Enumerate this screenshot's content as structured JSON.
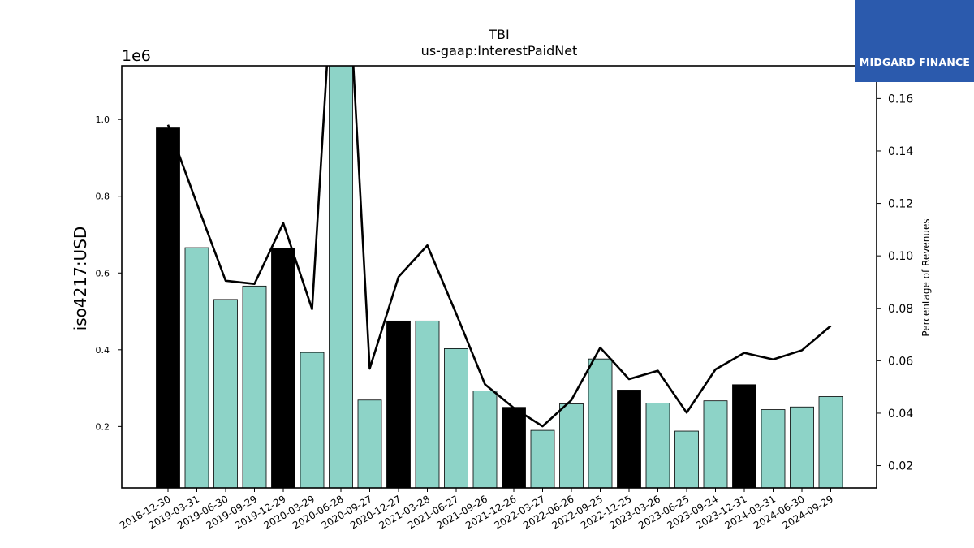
{
  "chart_data": {
    "type": "bar",
    "title": "TBI",
    "subtitle": "us-gaap:InterestPaidNet",
    "ylabel": "iso4217:USD",
    "y_offset_label": "1e6",
    "y2label": "Percentage of Revenues",
    "ylim": [
      40000,
      1140000
    ],
    "y2lim": [
      0.0115,
      0.1725
    ],
    "yticks": [
      "0.2",
      "0.4",
      "0.6",
      "0.8",
      "1.0"
    ],
    "y2ticks": [
      "0.02",
      "0.04",
      "0.06",
      "0.08",
      "0.10",
      "0.12",
      "0.14",
      "0.16"
    ],
    "categories": [
      "2018-12-30",
      "2019-03-31",
      "2019-06-30",
      "2019-09-29",
      "2019-12-29",
      "2020-03-29",
      "2020-06-28",
      "2020-09-27",
      "2020-12-27",
      "2021-03-28",
      "2021-06-27",
      "2021-09-26",
      "2021-12-26",
      "2022-03-27",
      "2022-06-26",
      "2022-09-25",
      "2022-12-25",
      "2023-03-26",
      "2023-06-25",
      "2023-09-24",
      "2023-12-31",
      "2024-03-31",
      "2024-06-30",
      "2024-09-29"
    ],
    "series": [
      {
        "type": "bar",
        "values": [
          978000,
          666000,
          531000,
          566000,
          664000,
          393000,
          1140000,
          269000,
          475000,
          475000,
          403000,
          293000,
          250000,
          190000,
          259000,
          376000,
          295000,
          261000,
          188000,
          267000,
          309000,
          244000,
          251000,
          278000
        ],
        "highlight": [
          true,
          false,
          false,
          false,
          true,
          false,
          false,
          false,
          true,
          false,
          false,
          false,
          true,
          false,
          false,
          false,
          true,
          false,
          false,
          false,
          true,
          false,
          false,
          false
        ]
      },
      {
        "type": "line",
        "axis": "right",
        "values": [
          0.15,
          0.12,
          0.0905,
          0.0893,
          0.1125,
          0.0797,
          0.26,
          0.057,
          0.092,
          0.104,
          0.078,
          0.051,
          0.042,
          0.035,
          0.045,
          0.065,
          0.053,
          0.0562,
          0.0402,
          0.0567,
          0.063,
          0.0605,
          0.064,
          0.0733
        ]
      }
    ],
    "colors": {
      "bar": "#8dd3c7",
      "highlight": "#000000",
      "line": "#000000",
      "logo_bg": "#2b5aad"
    },
    "grid": false
  },
  "logo": {
    "text": "MIDGARD FINANCE",
    "icon": "midgard-logo-icon"
  }
}
